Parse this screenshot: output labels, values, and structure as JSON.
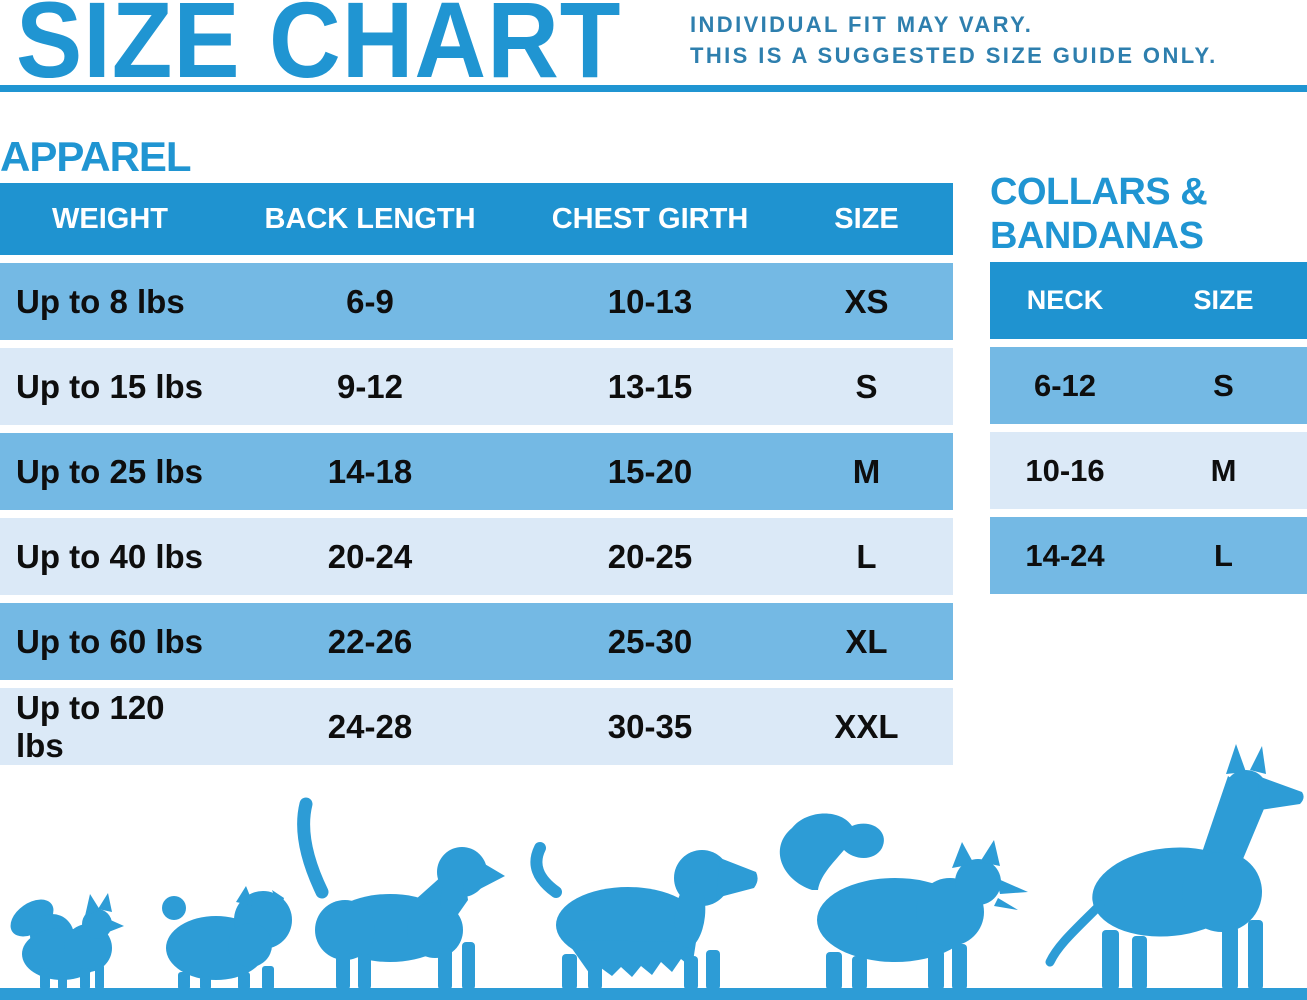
{
  "page": {
    "title": "SIZE CHART",
    "note_line1": "INDIVIDUAL FIT MAY VARY.",
    "note_line2": "THIS IS A SUGGESTED SIZE GUIDE ONLY."
  },
  "chart_data": [
    {
      "type": "table",
      "title": "APPAREL",
      "columns": [
        "WEIGHT",
        "BACK LENGTH",
        "CHEST GIRTH",
        "SIZE"
      ],
      "rows": [
        [
          "Up to 8 lbs",
          "6-9",
          "10-13",
          "XS"
        ],
        [
          "Up to 15 lbs",
          "9-12",
          "13-15",
          "S"
        ],
        [
          "Up to 25 lbs",
          "14-18",
          "15-20",
          "M"
        ],
        [
          "Up to 40 lbs",
          "20-24",
          "20-25",
          "L"
        ],
        [
          "Up to 60 lbs",
          "22-26",
          "25-30",
          "XL"
        ],
        [
          "Up to 120 lbs",
          "24-28",
          "30-35",
          "XXL"
        ]
      ]
    },
    {
      "type": "table",
      "title": "COLLARS & BANDANAS",
      "columns": [
        "NECK",
        "SIZE"
      ],
      "rows": [
        [
          "6-12",
          "S"
        ],
        [
          "10-16",
          "M"
        ],
        [
          "14-24",
          "L"
        ]
      ]
    }
  ],
  "dog_silhouettes": [
    "pomeranian-icon",
    "pug-icon",
    "beagle-icon",
    "cocker-spaniel-icon",
    "husky-icon",
    "great-dane-icon"
  ],
  "colors": {
    "accent_blue": "#2095d2",
    "table_header_blue": "#1f93d0",
    "row_medium_blue": "#74b9e4",
    "row_light_blue": "#dbe9f7",
    "note_text_blue": "#2e7fae",
    "dog_blue": "#2d9cd6",
    "cell_text": "#0e0e0e",
    "header_text": "#ffffff"
  }
}
